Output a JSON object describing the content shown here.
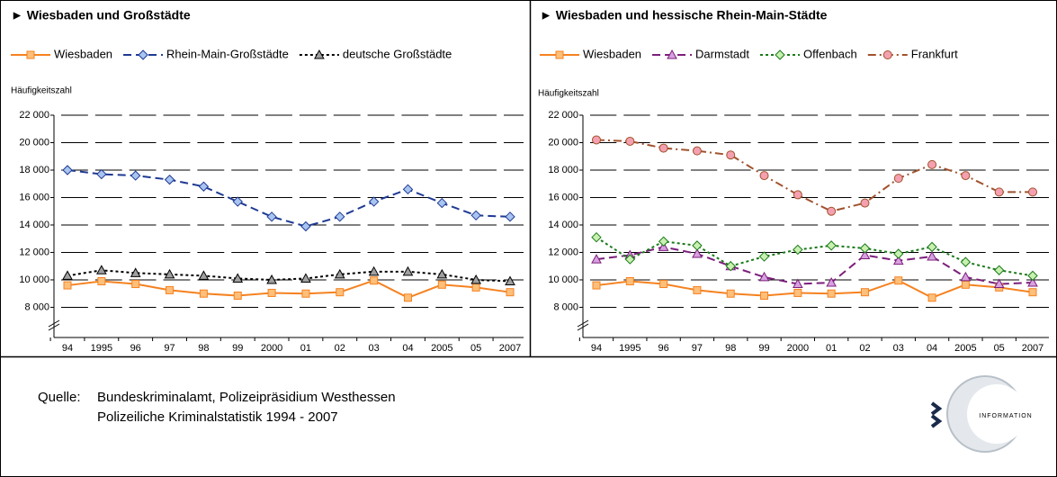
{
  "chart_data": [
    {
      "type": "line",
      "title": "► Wiesbaden und Großstädte",
      "y_label": "Häufigkeitszahl",
      "categories": [
        "94",
        "1995",
        "96",
        "97",
        "98",
        "99",
        "2000",
        "01",
        "02",
        "03",
        "04",
        "2005",
        "05",
        "2007"
      ],
      "ylim": [
        5800,
        22000
      ],
      "yticks": [
        {
          "value": 8000,
          "label": "8 000"
        },
        {
          "value": 10000,
          "label": "10 000"
        },
        {
          "value": 12000,
          "label": "12 000"
        },
        {
          "value": 14000,
          "label": "14 000"
        },
        {
          "value": 16000,
          "label": "16 000"
        },
        {
          "value": 18000,
          "label": "18 000"
        },
        {
          "value": 20000,
          "label": "20 000"
        },
        {
          "value": 22000,
          "label": "22 000"
        }
      ],
      "grid": true,
      "legend": "top",
      "series": [
        {
          "name": "Wiesbaden",
          "color": "#f58220",
          "marker": "square",
          "marker_fill": "#fdbf7a",
          "dash": "solid",
          "values": [
            9600,
            9900,
            9700,
            9250,
            9000,
            8850,
            9050,
            9000,
            9100,
            9950,
            8700,
            9650,
            9450,
            9100
          ]
        },
        {
          "name": "Rhein-Main-Großstädte",
          "color": "#1f3a93",
          "marker": "diamond",
          "marker_fill": "#a8c4f0",
          "dash": "dashed",
          "values": [
            18000,
            17700,
            17600,
            17300,
            16800,
            15700,
            14600,
            13900,
            14600,
            15700,
            16600,
            15600,
            14700,
            14600
          ]
        },
        {
          "name": "deutsche Großstädte",
          "color": "#000000",
          "marker": "triangle",
          "marker_fill": "#a0a0a0",
          "dash": "dotted",
          "values": [
            10300,
            10700,
            10500,
            10400,
            10300,
            10100,
            10000,
            10100,
            10400,
            10600,
            10600,
            10400,
            10000,
            9900
          ]
        }
      ]
    },
    {
      "type": "line",
      "title": "► Wiesbaden und hessische Rhein-Main-Städte",
      "y_label": "Häufigkeitszahl",
      "categories": [
        "94",
        "1995",
        "96",
        "97",
        "98",
        "99",
        "2000",
        "01",
        "02",
        "03",
        "04",
        "2005",
        "05",
        "2007"
      ],
      "ylim": [
        5800,
        22000
      ],
      "yticks": [
        {
          "value": 8000,
          "label": "8 000"
        },
        {
          "value": 10000,
          "label": "10 000"
        },
        {
          "value": 12000,
          "label": "12 000"
        },
        {
          "value": 14000,
          "label": "14 000"
        },
        {
          "value": 16000,
          "label": "16 000"
        },
        {
          "value": 18000,
          "label": "18 000"
        },
        {
          "value": 20000,
          "label": "20 000"
        },
        {
          "value": 22000,
          "label": "22 000"
        }
      ],
      "grid": true,
      "legend": "top",
      "series": [
        {
          "name": "Wiesbaden",
          "color": "#f58220",
          "marker": "square",
          "marker_fill": "#fdbf7a",
          "dash": "solid",
          "values": [
            9600,
            9900,
            9700,
            9250,
            9000,
            8850,
            9050,
            9000,
            9100,
            9950,
            8700,
            9650,
            9450,
            9100
          ]
        },
        {
          "name": "Darmstadt",
          "color": "#7b1f7b",
          "marker": "triangle",
          "marker_fill": "#d8a0e0",
          "dash": "dashed",
          "values": [
            11500,
            11800,
            12400,
            11900,
            11000,
            10200,
            9700,
            9800,
            11800,
            11400,
            11700,
            10200,
            9700,
            9800
          ]
        },
        {
          "name": "Offenbach",
          "color": "#1a7a1a",
          "marker": "diamond",
          "marker_fill": "#c8f0b0",
          "dash": "dotted",
          "values": [
            13100,
            11500,
            12800,
            12500,
            11000,
            11700,
            12200,
            12500,
            12300,
            11900,
            12400,
            11300,
            10700,
            10300
          ]
        },
        {
          "name": "Frankfurt",
          "color": "#a0522d",
          "marker": "circle",
          "marker_fill": "#f5a0b0",
          "dash": "dashdot",
          "values": [
            20200,
            20100,
            19600,
            19400,
            19100,
            17600,
            16200,
            15000,
            15600,
            17400,
            18400,
            17600,
            16400,
            16400
          ]
        }
      ]
    }
  ],
  "source": {
    "label": "Quelle:",
    "lines": [
      "Bundeskriminalamt, Polizeipräsidium Westhessen",
      "Polizeiliche Kriminalstatistik 1994 - 2007"
    ]
  },
  "logo_text": "INFORMATION"
}
